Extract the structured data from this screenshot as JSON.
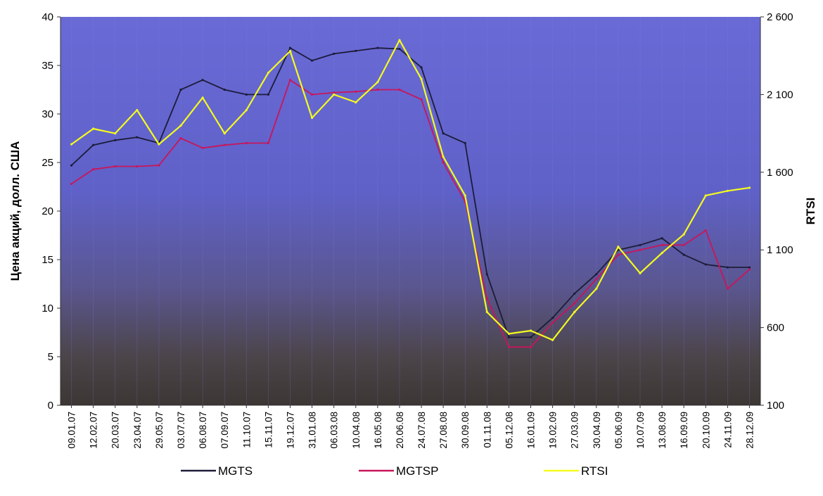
{
  "chart_data": {
    "type": "line",
    "title": "",
    "ylabel": "Цена акций, долл. США",
    "y2label": "RTSI",
    "ylim": [
      0,
      40
    ],
    "y2lim": [
      100,
      2600
    ],
    "yticks": [
      "0",
      "5",
      "10",
      "15",
      "20",
      "25",
      "30",
      "35",
      "40"
    ],
    "y2ticks": [
      "100",
      "600",
      "1 100",
      "1 600",
      "2 100",
      "2 600"
    ],
    "categories": [
      "09.01.07",
      "12.02.07",
      "20.03.07",
      "23.04.07",
      "29.05.07",
      "03.07.07",
      "06.08.07",
      "07.09.07",
      "11.10.07",
      "15.11.07",
      "19.12.07",
      "31.01.08",
      "06.03.08",
      "10.04.08",
      "16.05.08",
      "20.06.08",
      "24.07.08",
      "27.08.08",
      "30.09.08",
      "01.11.08",
      "05.12.08",
      "16.01.09",
      "19.02.09",
      "27.03.09",
      "30.04.09",
      "05.06.09",
      "10.07.09",
      "13.08.09",
      "16.09.09",
      "20.10.09",
      "24.11.09",
      "28.12.09"
    ],
    "legend_position": "bottom",
    "series": [
      {
        "name": "MGTS",
        "axis": "left",
        "color": "#1c1c3a",
        "values": [
          24.7,
          26.8,
          27.3,
          27.6,
          27.0,
          32.5,
          33.5,
          32.5,
          32.0,
          32.0,
          36.8,
          35.5,
          36.2,
          36.5,
          36.8,
          36.7,
          34.8,
          28.0,
          27.0,
          13.5,
          7.0,
          7.0,
          9.0,
          11.5,
          13.5,
          16.0,
          16.5,
          17.2,
          15.5,
          14.5,
          14.2,
          14.2
        ]
      },
      {
        "name": "MGTSP",
        "axis": "left",
        "color": "#c8165a",
        "values": [
          22.8,
          24.3,
          24.6,
          24.6,
          24.7,
          27.5,
          26.5,
          26.8,
          27.0,
          27.0,
          33.5,
          32.0,
          32.2,
          32.3,
          32.5,
          32.5,
          31.5,
          25.0,
          21.0,
          11.0,
          6.0,
          6.0,
          8.5,
          10.5,
          13.0,
          15.5,
          16.0,
          16.5,
          16.5,
          18.0,
          12.0,
          14.0
        ]
      },
      {
        "name": "RTSI",
        "axis": "right",
        "color": "#f4fb1e",
        "values": [
          1780,
          1880,
          1850,
          2000,
          1780,
          1900,
          2080,
          1850,
          2000,
          2240,
          2380,
          1950,
          2100,
          2050,
          2180,
          2450,
          2200,
          1700,
          1450,
          700,
          560,
          580,
          520,
          700,
          850,
          1120,
          950,
          1080,
          1200,
          1450,
          1480,
          1500
        ]
      }
    ]
  }
}
